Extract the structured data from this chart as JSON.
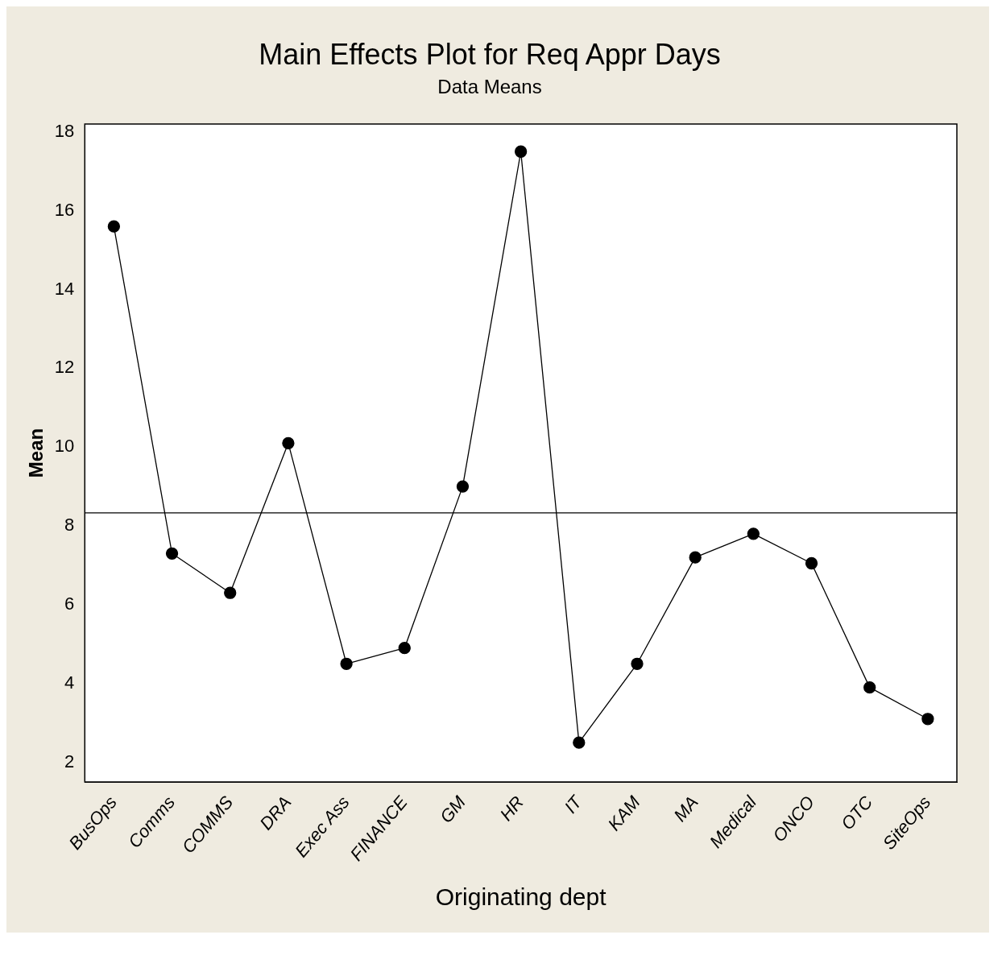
{
  "chart_data": {
    "type": "line",
    "title": "Main Effects Plot for Req Appr Days",
    "subtitle": "Data Means",
    "xlabel": "Originating dept",
    "ylabel": "Mean",
    "categories": [
      "BusOps",
      "Comms",
      "COMMS",
      "DRA",
      "Exec Ass",
      "FINANCE",
      "GM",
      "HR",
      "IT",
      "KAM",
      "MA",
      "Medical",
      "ONCO",
      "OTC",
      "SiteOps"
    ],
    "series": [
      {
        "color": "#000000",
        "values": [
          15.6,
          7.3,
          6.3,
          10.1,
          4.5,
          4.9,
          9.0,
          17.5,
          2.5,
          4.5,
          7.2,
          7.8,
          7.05,
          3.9,
          3.1
        ]
      }
    ],
    "ylim": [
      1.5,
      18.2
    ],
    "yticks": [
      2,
      4,
      6,
      8,
      10,
      12,
      14,
      16,
      18
    ],
    "ref_lines": [
      {
        "axis": "y",
        "value": 8.33,
        "color": "#000000"
      }
    ],
    "marker": "circle",
    "line_style": "solid",
    "grid": false,
    "legend": false
  }
}
